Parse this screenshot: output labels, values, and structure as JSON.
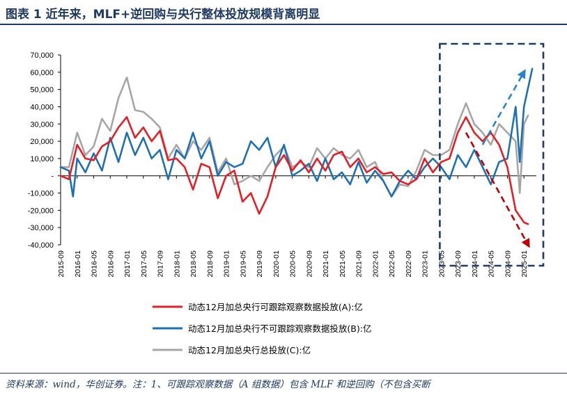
{
  "title": "图表 1    近年来，MLF+逆回购与央行整体投放规模背离明显",
  "source": "资料来源：wind，华创证券。注：1、可跟踪观察数据（A 组数据）包含 MLF 和逆回购（不包含买断",
  "colors": {
    "series_a": "#e31f26",
    "series_b": "#1f6fb5",
    "series_c": "#a6a6a6",
    "frame": "#1f3a63",
    "arrow_red": "#c00000",
    "arrow_blue": "#2a84cc"
  },
  "chart_data": {
    "type": "line",
    "title": "",
    "xlabel": "",
    "ylabel": "",
    "ylim": [
      -40000,
      70000
    ],
    "yticks": [
      "70,000",
      "60,000",
      "50,000",
      "40,000",
      "30,000",
      "20,000",
      "10,000",
      "-",
      "-10,000",
      "-20,000",
      "-30,000",
      "-40,000"
    ],
    "ytick_values": [
      70000,
      60000,
      50000,
      40000,
      30000,
      20000,
      10000,
      0,
      -10000,
      -20000,
      -30000,
      -40000
    ],
    "x_start": "2015-09",
    "x_end": "2025-04",
    "xticks": [
      "2015-09",
      "2016-01",
      "2016-05",
      "2016-09",
      "2017-01",
      "2017-05",
      "2017-09",
      "2018-01",
      "2018-05",
      "2018-09",
      "2019-01",
      "2019-05",
      "2019-09",
      "2020-01",
      "2020-05",
      "2020-09",
      "2021-01",
      "2021-05",
      "2021-09",
      "2022-01",
      "2022-05",
      "2022-09",
      "2023-01",
      "2023-05",
      "2023-09",
      "2024-01",
      "2024-05",
      "2024-09",
      "2025-01"
    ],
    "grid": false,
    "legend_position": "bottom",
    "series": [
      {
        "name": "动态12月加总央行可跟踪观察数据投放(A):亿",
        "color": "#e31f26",
        "points": [
          [
            "2015-09",
            0
          ],
          [
            "2015-11",
            -2000
          ],
          [
            "2016-01",
            18000
          ],
          [
            "2016-03",
            10000
          ],
          [
            "2016-05",
            9000
          ],
          [
            "2016-07",
            17000
          ],
          [
            "2016-09",
            20000
          ],
          [
            "2016-11",
            28000
          ],
          [
            "2017-01",
            34000
          ],
          [
            "2017-03",
            22000
          ],
          [
            "2017-05",
            28000
          ],
          [
            "2017-07",
            20000
          ],
          [
            "2017-09",
            26000
          ],
          [
            "2017-11",
            9000
          ],
          [
            "2018-01",
            10000
          ],
          [
            "2018-03",
            5000
          ],
          [
            "2018-05",
            -8000
          ],
          [
            "2018-07",
            7000
          ],
          [
            "2018-09",
            5000
          ],
          [
            "2018-11",
            -13000
          ],
          [
            "2019-01",
            0
          ],
          [
            "2019-03",
            3000
          ],
          [
            "2019-05",
            -15000
          ],
          [
            "2019-07",
            -10000
          ],
          [
            "2019-09",
            -22000
          ],
          [
            "2019-11",
            -12000
          ],
          [
            "2020-01",
            5000
          ],
          [
            "2020-03",
            12000
          ],
          [
            "2020-05",
            3000
          ],
          [
            "2020-07",
            9000
          ],
          [
            "2020-09",
            2000
          ],
          [
            "2020-11",
            10000
          ],
          [
            "2021-01",
            3000
          ],
          [
            "2021-03",
            12000
          ],
          [
            "2021-05",
            14000
          ],
          [
            "2021-07",
            5000
          ],
          [
            "2021-09",
            10000
          ],
          [
            "2021-11",
            2000
          ],
          [
            "2022-01",
            5000
          ],
          [
            "2022-03",
            1000
          ],
          [
            "2022-05",
            2000
          ],
          [
            "2022-07",
            -3000
          ],
          [
            "2022-09",
            -5000
          ],
          [
            "2022-11",
            -2000
          ],
          [
            "2023-01",
            10000
          ],
          [
            "2023-03",
            2000
          ],
          [
            "2023-05",
            8000
          ],
          [
            "2023-07",
            10000
          ],
          [
            "2023-09",
            25000
          ],
          [
            "2023-11",
            34000
          ],
          [
            "2024-01",
            25000
          ],
          [
            "2024-03",
            20000
          ],
          [
            "2024-05",
            25000
          ],
          [
            "2024-07",
            18000
          ],
          [
            "2024-09",
            5000
          ],
          [
            "2024-11",
            -20000
          ],
          [
            "2025-01",
            -27000
          ],
          [
            "2025-02",
            -28000
          ]
        ]
      },
      {
        "name": "动态12月加总央行不可跟踪观察数据投放(B):亿",
        "color": "#1f6fb5",
        "points": [
          [
            "2015-09",
            5000
          ],
          [
            "2015-11",
            3000
          ],
          [
            "2015-12",
            -12000
          ],
          [
            "2016-01",
            10000
          ],
          [
            "2016-03",
            2000
          ],
          [
            "2016-05",
            13000
          ],
          [
            "2016-07",
            3000
          ],
          [
            "2016-09",
            22000
          ],
          [
            "2016-11",
            8000
          ],
          [
            "2017-01",
            25000
          ],
          [
            "2017-03",
            12000
          ],
          [
            "2017-05",
            22000
          ],
          [
            "2017-07",
            10000
          ],
          [
            "2017-09",
            15000
          ],
          [
            "2017-11",
            -2000
          ],
          [
            "2018-01",
            15000
          ],
          [
            "2018-03",
            10000
          ],
          [
            "2018-05",
            25000
          ],
          [
            "2018-07",
            10000
          ],
          [
            "2018-09",
            20000
          ],
          [
            "2018-11",
            0
          ],
          [
            "2019-01",
            8000
          ],
          [
            "2019-03",
            5000
          ],
          [
            "2019-05",
            7000
          ],
          [
            "2019-07",
            20000
          ],
          [
            "2019-09",
            15000
          ],
          [
            "2019-11",
            22000
          ],
          [
            "2020-01",
            5000
          ],
          [
            "2020-03",
            18000
          ],
          [
            "2020-05",
            0
          ],
          [
            "2020-07",
            3000
          ],
          [
            "2020-09",
            7000
          ],
          [
            "2020-11",
            -3000
          ],
          [
            "2021-01",
            10000
          ],
          [
            "2021-03",
            -2000
          ],
          [
            "2021-05",
            2000
          ],
          [
            "2021-07",
            -5000
          ],
          [
            "2021-09",
            8000
          ],
          [
            "2021-11",
            -4000
          ],
          [
            "2022-01",
            3000
          ],
          [
            "2022-03",
            -3000
          ],
          [
            "2022-05",
            -12000
          ],
          [
            "2022-07",
            -3000
          ],
          [
            "2022-09",
            3000
          ],
          [
            "2022-11",
            -2000
          ],
          [
            "2023-01",
            5000
          ],
          [
            "2023-03",
            10000
          ],
          [
            "2023-05",
            5000
          ],
          [
            "2023-07",
            -2000
          ],
          [
            "2023-09",
            12000
          ],
          [
            "2023-11",
            5000
          ],
          [
            "2024-01",
            15000
          ],
          [
            "2024-03",
            5000
          ],
          [
            "2024-05",
            -5000
          ],
          [
            "2024-07",
            8000
          ],
          [
            "2024-09",
            10000
          ],
          [
            "2024-11",
            40000
          ],
          [
            "2024-12",
            8000
          ],
          [
            "2025-01",
            40000
          ],
          [
            "2025-03",
            62000
          ]
        ]
      },
      {
        "name": "动态12月加总央行总投放(C):亿",
        "color": "#a6a6a6",
        "points": [
          [
            "2015-09",
            5000
          ],
          [
            "2015-11",
            5000
          ],
          [
            "2016-01",
            25000
          ],
          [
            "2016-03",
            12000
          ],
          [
            "2016-05",
            17000
          ],
          [
            "2016-07",
            33000
          ],
          [
            "2016-09",
            26000
          ],
          [
            "2016-11",
            45000
          ],
          [
            "2017-01",
            57000
          ],
          [
            "2017-03",
            38000
          ],
          [
            "2017-05",
            37000
          ],
          [
            "2017-07",
            33000
          ],
          [
            "2017-09",
            28000
          ],
          [
            "2017-11",
            10000
          ],
          [
            "2018-01",
            18000
          ],
          [
            "2018-03",
            10000
          ],
          [
            "2018-05",
            20000
          ],
          [
            "2018-07",
            15000
          ],
          [
            "2018-09",
            22000
          ],
          [
            "2018-11",
            2000
          ],
          [
            "2019-01",
            10000
          ],
          [
            "2019-03",
            -5000
          ],
          [
            "2019-05",
            -3000
          ],
          [
            "2019-07",
            0
          ],
          [
            "2019-09",
            -3000
          ],
          [
            "2019-11",
            5000
          ],
          [
            "2020-01",
            12000
          ],
          [
            "2020-03",
            17000
          ],
          [
            "2020-05",
            5000
          ],
          [
            "2020-07",
            8000
          ],
          [
            "2020-09",
            5000
          ],
          [
            "2020-11",
            16000
          ],
          [
            "2021-01",
            10000
          ],
          [
            "2021-03",
            16000
          ],
          [
            "2021-05",
            12000
          ],
          [
            "2021-07",
            10000
          ],
          [
            "2021-09",
            15000
          ],
          [
            "2021-11",
            5000
          ],
          [
            "2022-01",
            8000
          ],
          [
            "2022-03",
            -3000
          ],
          [
            "2022-05",
            -12000
          ],
          [
            "2022-07",
            -5000
          ],
          [
            "2022-09",
            -6000
          ],
          [
            "2022-11",
            3000
          ],
          [
            "2023-01",
            15000
          ],
          [
            "2023-03",
            12000
          ],
          [
            "2023-05",
            12000
          ],
          [
            "2023-07",
            15000
          ],
          [
            "2023-09",
            30000
          ],
          [
            "2023-11",
            42000
          ],
          [
            "2024-01",
            30000
          ],
          [
            "2024-03",
            25000
          ],
          [
            "2024-05",
            18000
          ],
          [
            "2024-07",
            30000
          ],
          [
            "2024-09",
            25000
          ],
          [
            "2024-11",
            20000
          ],
          [
            "2024-12",
            -10000
          ],
          [
            "2025-01",
            30000
          ],
          [
            "2025-02",
            35000
          ]
        ]
      }
    ],
    "annotations": [
      {
        "type": "dashed-box",
        "from": "2023-05",
        "to": "2025-04",
        "ymin": -40000,
        "ymax": 70000,
        "color": "#1f3a63"
      },
      {
        "type": "arrow",
        "from": [
          "2023-11",
          25000
        ],
        "to": [
          "2025-02",
          -40000
        ],
        "color": "#c00000"
      },
      {
        "type": "arrow",
        "from": [
          "2024-03",
          18000
        ],
        "to": [
          "2025-01",
          60000
        ],
        "color": "#2a84cc"
      }
    ]
  }
}
